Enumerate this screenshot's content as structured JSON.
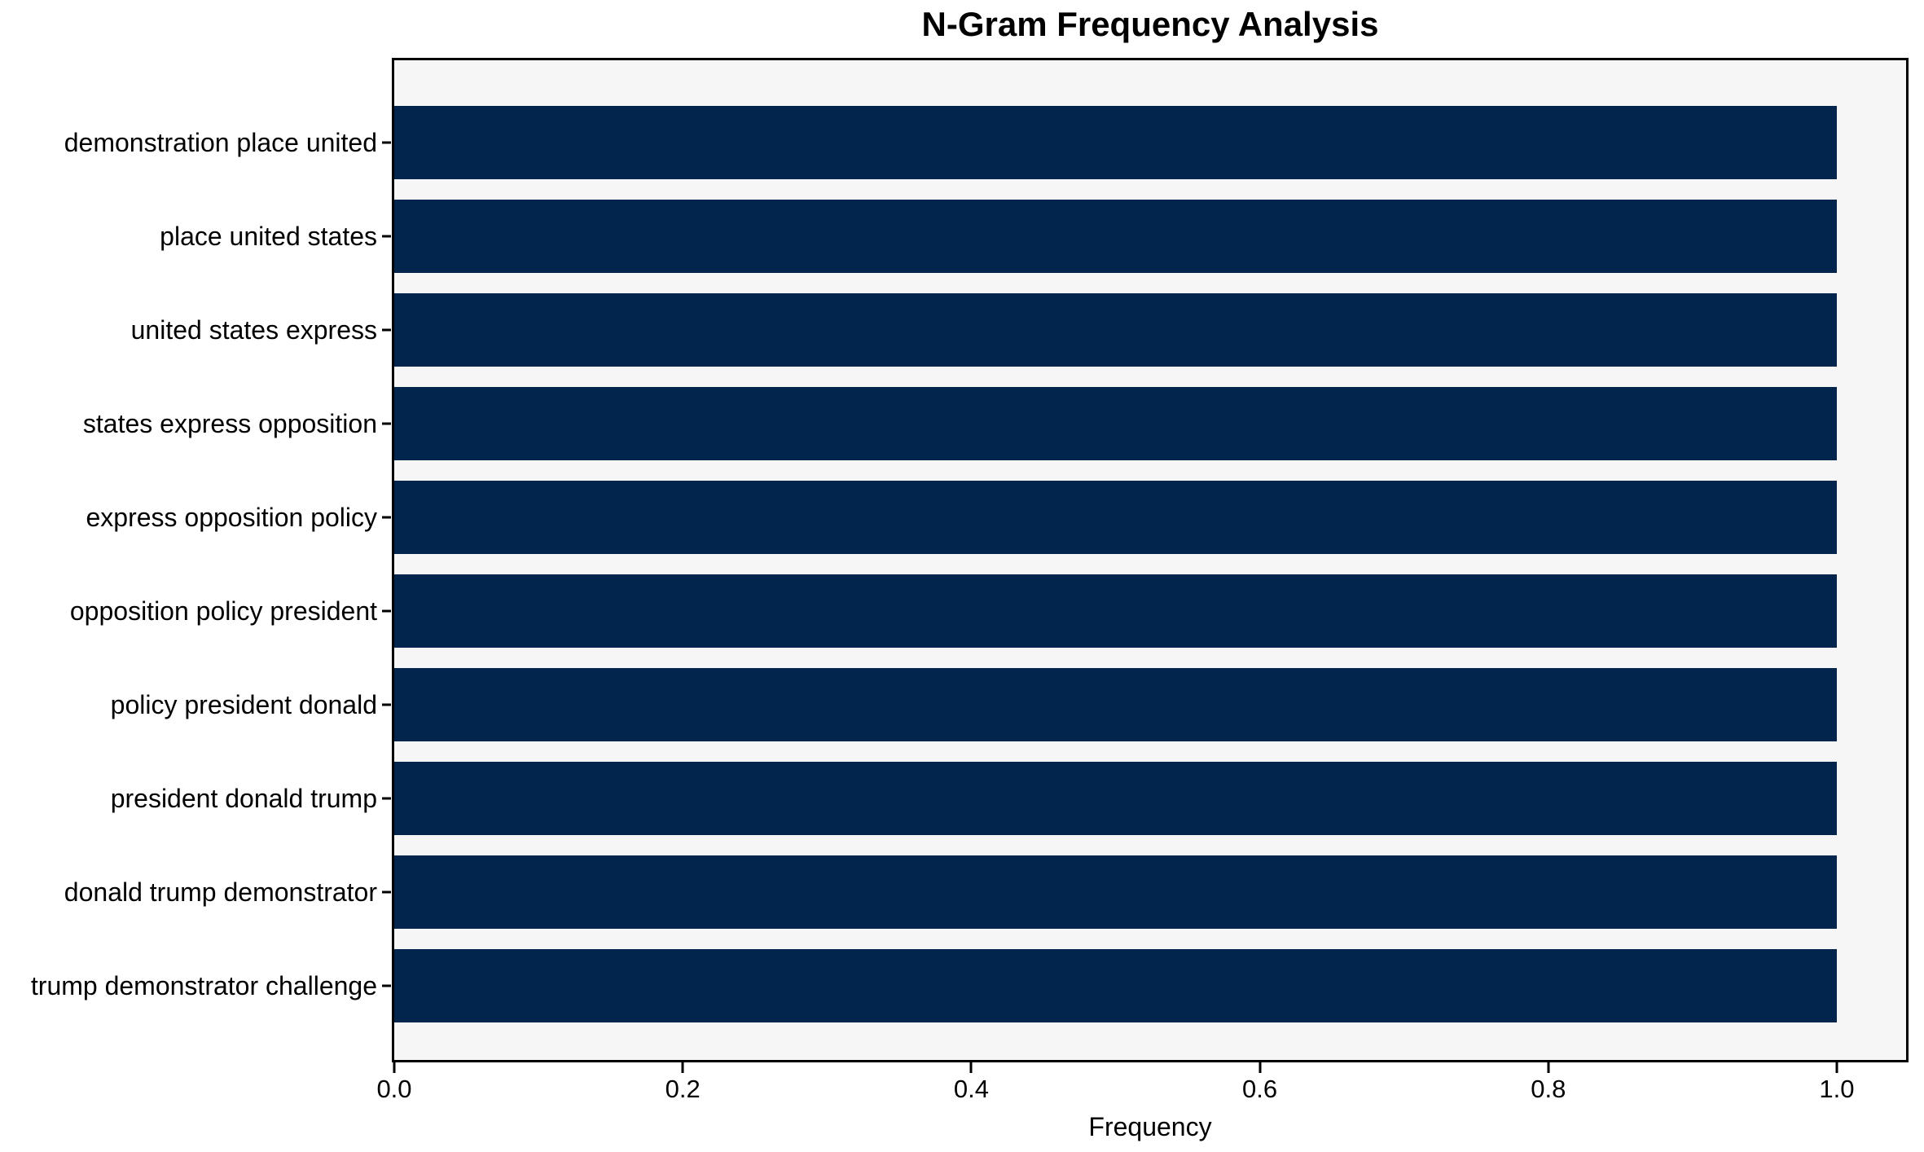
{
  "chart_data": {
    "type": "bar",
    "orientation": "horizontal",
    "title": "N-Gram Frequency Analysis",
    "xlabel": "Frequency",
    "ylabel": "",
    "categories": [
      "demonstration place united",
      "place united states",
      "united states express",
      "states express opposition",
      "express opposition policy",
      "opposition policy president",
      "policy president donald",
      "president donald trump",
      "donald trump demonstrator",
      "trump demonstrator challenge"
    ],
    "values": [
      1.0,
      1.0,
      1.0,
      1.0,
      1.0,
      1.0,
      1.0,
      1.0,
      1.0,
      1.0
    ],
    "xlim": [
      0,
      1.048
    ],
    "xtick_values": [
      0.0,
      0.2,
      0.4,
      0.6,
      0.8,
      1.0
    ],
    "xtick_labels": [
      "0.0",
      "0.2",
      "0.4",
      "0.6",
      "0.8",
      "1.0"
    ],
    "grid": false,
    "legend": null
  },
  "colors": {
    "bar": "#02254e",
    "plot_background": "#f6f6f7",
    "figure_background": "#ffffff",
    "spine": "#000000",
    "text": "#000000"
  }
}
